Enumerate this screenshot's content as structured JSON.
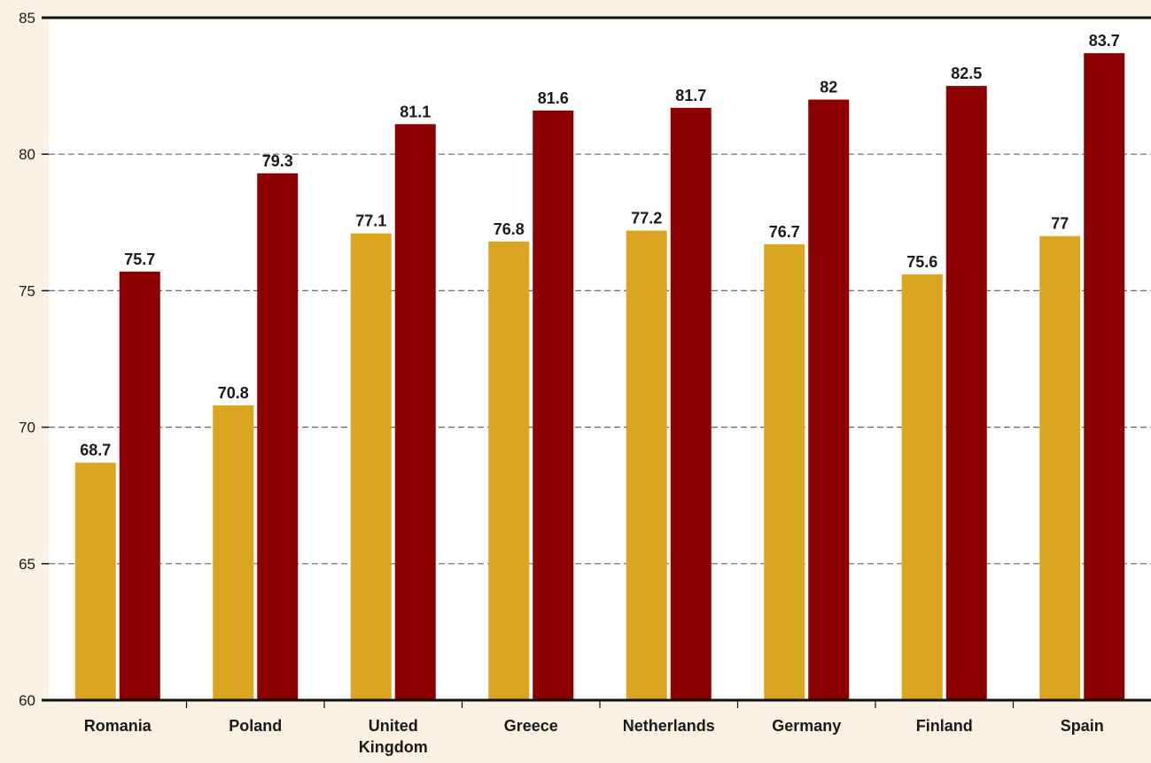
{
  "chart_data": {
    "type": "bar",
    "categories": [
      "Romania",
      "Poland",
      "United\nKingdom",
      "Greece",
      "Netherlands",
      "Germany",
      "Finland",
      "Spain"
    ],
    "series": [
      {
        "color": "#daa520",
        "values": [
          68.7,
          70.8,
          77.1,
          76.8,
          77.2,
          76.7,
          75.6,
          77
        ],
        "labels": [
          "68.7",
          "70.8",
          "77.1",
          "76.8",
          "77.2",
          "76.7",
          "75.6",
          "77"
        ]
      },
      {
        "color": "#8b0000",
        "values": [
          75.7,
          79.3,
          81.1,
          81.6,
          81.7,
          82,
          82.5,
          83.7
        ],
        "labels": [
          "75.7",
          "79.3",
          "81.1",
          "81.6",
          "81.7",
          "82",
          "82.5",
          "83.7"
        ]
      }
    ],
    "title": "",
    "xlabel": "",
    "ylabel": "",
    "ylim": [
      60,
      85
    ],
    "yticks": [
      "60",
      "65",
      "70",
      "75",
      "80",
      "85"
    ],
    "grid": "dashed horizontal",
    "legend": "none"
  },
  "colors": {
    "background": "#fbf1e3",
    "plot_background": "#ffffff",
    "axis": "#111111",
    "grid": "#666666"
  }
}
